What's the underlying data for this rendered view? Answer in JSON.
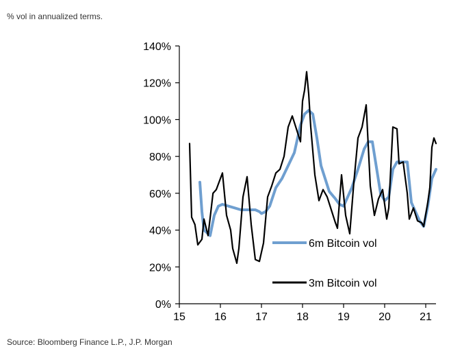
{
  "header": {
    "subtitle": "% vol in annualized terms."
  },
  "footer": {
    "source": "Source: Bloomberg Finance L.P., J.P. Morgan"
  },
  "chart_data": {
    "type": "line",
    "title": "",
    "xlabel": "",
    "ylabel": "",
    "xlim": [
      15,
      21.25
    ],
    "ylim": [
      0,
      140
    ],
    "x_ticks": [
      "15",
      "16",
      "17",
      "18",
      "19",
      "20",
      "21"
    ],
    "y_ticks": [
      "0%",
      "20%",
      "40%",
      "60%",
      "80%",
      "100%",
      "120%",
      "140%"
    ],
    "legend_placement": "bottom-center",
    "series": [
      {
        "name": "6m Bitcoin vol",
        "color": "#6f9fd0",
        "points": [
          [
            15.5,
            66
          ],
          [
            15.55,
            50
          ],
          [
            15.6,
            40
          ],
          [
            15.7,
            38
          ],
          [
            15.75,
            37
          ],
          [
            15.85,
            48
          ],
          [
            15.95,
            53
          ],
          [
            16.05,
            54
          ],
          [
            16.2,
            53
          ],
          [
            16.35,
            52
          ],
          [
            16.5,
            51
          ],
          [
            16.7,
            51
          ],
          [
            16.85,
            51
          ],
          [
            16.95,
            50
          ],
          [
            17.0,
            49
          ],
          [
            17.1,
            50
          ],
          [
            17.2,
            53
          ],
          [
            17.35,
            63
          ],
          [
            17.5,
            68
          ],
          [
            17.65,
            75
          ],
          [
            17.8,
            82
          ],
          [
            17.95,
            97
          ],
          [
            18.05,
            103
          ],
          [
            18.15,
            105
          ],
          [
            18.25,
            103
          ],
          [
            18.35,
            90
          ],
          [
            18.45,
            75
          ],
          [
            18.55,
            68
          ],
          [
            18.65,
            61
          ],
          [
            18.8,
            57
          ],
          [
            18.9,
            54
          ],
          [
            19.0,
            53
          ],
          [
            19.1,
            58
          ],
          [
            19.2,
            63
          ],
          [
            19.35,
            73
          ],
          [
            19.5,
            84
          ],
          [
            19.6,
            88
          ],
          [
            19.7,
            88
          ],
          [
            19.8,
            74
          ],
          [
            19.9,
            60
          ],
          [
            20.0,
            56
          ],
          [
            20.1,
            58
          ],
          [
            20.2,
            73
          ],
          [
            20.3,
            77
          ],
          [
            20.45,
            77
          ],
          [
            20.55,
            77
          ],
          [
            20.65,
            55
          ],
          [
            20.75,
            50
          ],
          [
            20.85,
            45
          ],
          [
            20.95,
            42
          ],
          [
            21.05,
            53
          ],
          [
            21.15,
            68
          ],
          [
            21.25,
            73
          ]
        ]
      },
      {
        "name": "3m Bitcoin vol",
        "color": "#000000",
        "points": [
          [
            15.25,
            87
          ],
          [
            15.3,
            47
          ],
          [
            15.38,
            43
          ],
          [
            15.45,
            32
          ],
          [
            15.55,
            35
          ],
          [
            15.6,
            46
          ],
          [
            15.7,
            37
          ],
          [
            15.82,
            60
          ],
          [
            15.9,
            62
          ],
          [
            16.0,
            68
          ],
          [
            16.05,
            71
          ],
          [
            16.15,
            48
          ],
          [
            16.25,
            40
          ],
          [
            16.3,
            30
          ],
          [
            16.4,
            22
          ],
          [
            16.45,
            30
          ],
          [
            16.55,
            58
          ],
          [
            16.65,
            69
          ],
          [
            16.75,
            43
          ],
          [
            16.85,
            24
          ],
          [
            16.95,
            23
          ],
          [
            17.05,
            33
          ],
          [
            17.15,
            58
          ],
          [
            17.25,
            64
          ],
          [
            17.35,
            71
          ],
          [
            17.45,
            73
          ],
          [
            17.55,
            80
          ],
          [
            17.65,
            96
          ],
          [
            17.75,
            102
          ],
          [
            17.85,
            95
          ],
          [
            17.95,
            88
          ],
          [
            18.0,
            110
          ],
          [
            18.05,
            116
          ],
          [
            18.1,
            126
          ],
          [
            18.15,
            114
          ],
          [
            18.2,
            96
          ],
          [
            18.3,
            70
          ],
          [
            18.4,
            56
          ],
          [
            18.5,
            62
          ],
          [
            18.6,
            58
          ],
          [
            18.7,
            51
          ],
          [
            18.8,
            44
          ],
          [
            18.85,
            41
          ],
          [
            18.95,
            70
          ],
          [
            19.05,
            48
          ],
          [
            19.15,
            38
          ],
          [
            19.25,
            66
          ],
          [
            19.35,
            90
          ],
          [
            19.45,
            96
          ],
          [
            19.55,
            108
          ],
          [
            19.65,
            64
          ],
          [
            19.75,
            48
          ],
          [
            19.85,
            57
          ],
          [
            19.95,
            62
          ],
          [
            20.05,
            46
          ],
          [
            20.1,
            52
          ],
          [
            20.2,
            96
          ],
          [
            20.3,
            95
          ],
          [
            20.35,
            76
          ],
          [
            20.45,
            77
          ],
          [
            20.55,
            60
          ],
          [
            20.6,
            46
          ],
          [
            20.7,
            52
          ],
          [
            20.8,
            45
          ],
          [
            20.9,
            44
          ],
          [
            20.95,
            42
          ],
          [
            21.05,
            55
          ],
          [
            21.1,
            63
          ],
          [
            21.15,
            85
          ],
          [
            21.2,
            90
          ],
          [
            21.25,
            87
          ]
        ]
      }
    ]
  }
}
